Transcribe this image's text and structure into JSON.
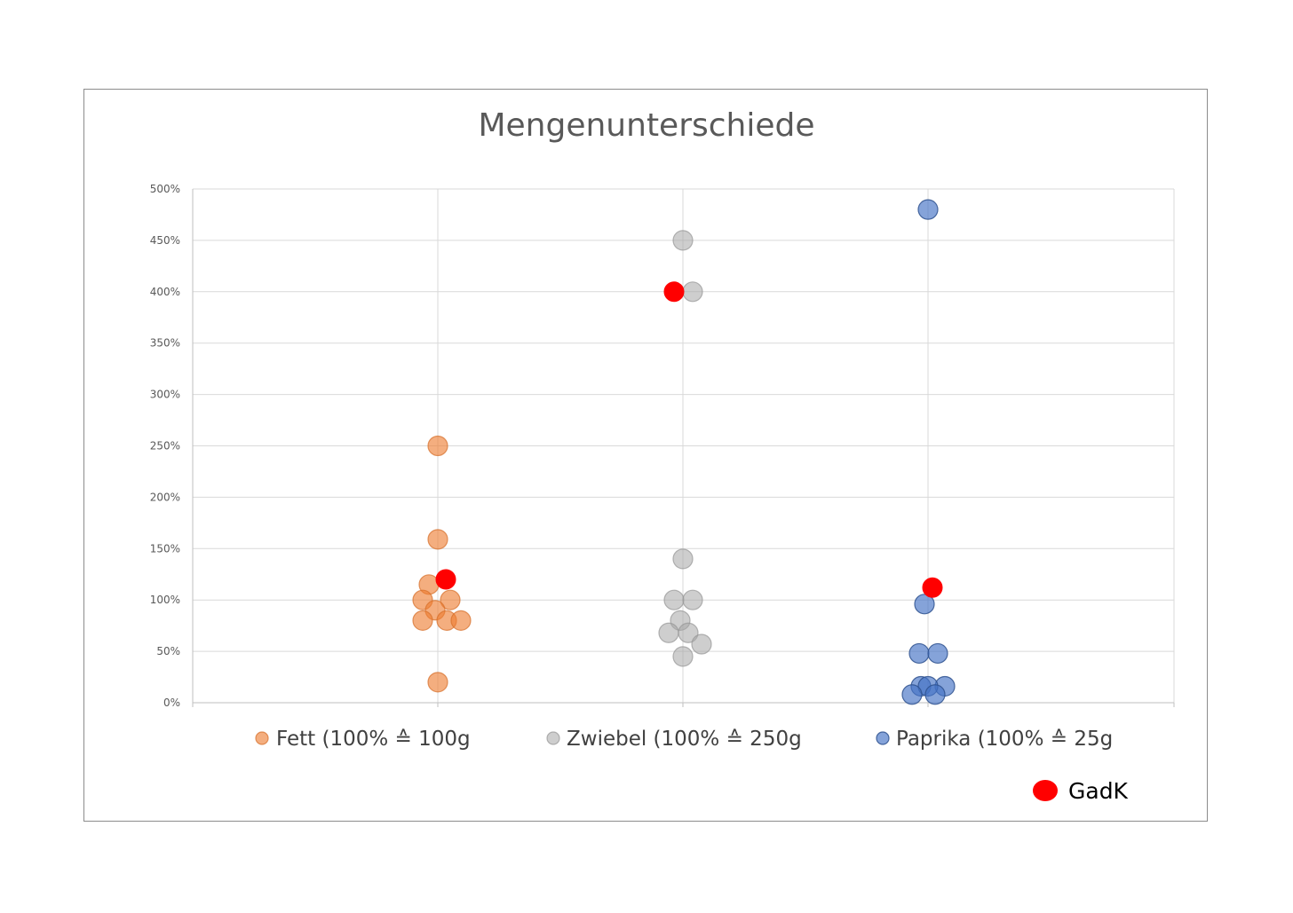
{
  "chart_data": {
    "type": "scatter",
    "title": "Mengenunterschiede",
    "xlabel": "",
    "ylabel": "",
    "ylim": [
      0,
      5
    ],
    "y_ticks": [
      "0%",
      "50%",
      "100%",
      "150%",
      "200%",
      "250%",
      "300%",
      "350%",
      "400%",
      "450%",
      "500%"
    ],
    "y_tick_values": [
      0,
      0.5,
      1,
      1.5,
      2,
      2.5,
      3,
      3.5,
      4,
      4.5,
      5
    ],
    "categories": [
      "Fett",
      "Zwiebel",
      "Paprika"
    ],
    "grid": true,
    "legend_position": "bottom",
    "series": [
      {
        "name": "Fett (100% ≙ 100g",
        "category": "Fett",
        "color": "#ed7d31",
        "values": [
          2.5,
          1.59,
          1.15,
          1.0,
          1.0,
          0.9,
          0.8,
          0.8,
          0.8,
          0.2
        ]
      },
      {
        "name": "Zwiebel (100% ≙ 250g",
        "category": "Zwiebel",
        "color": "#a5a5a5",
        "values": [
          4.5,
          4.0,
          1.4,
          1.0,
          1.0,
          0.8,
          0.68,
          0.68,
          0.57,
          0.45
        ]
      },
      {
        "name": "Paprika (100% ≙ 25g",
        "category": "Paprika",
        "color": "#4472c4",
        "values": [
          4.8,
          0.96,
          0.48,
          0.48,
          0.16,
          0.16,
          0.16,
          0.08,
          0.08
        ]
      },
      {
        "name": "GadK",
        "color": "#ff0000",
        "points": [
          {
            "category": "Fett",
            "value": 1.2
          },
          {
            "category": "Zwiebel",
            "value": 4.0
          },
          {
            "category": "Paprika",
            "value": 1.12
          }
        ]
      }
    ]
  }
}
